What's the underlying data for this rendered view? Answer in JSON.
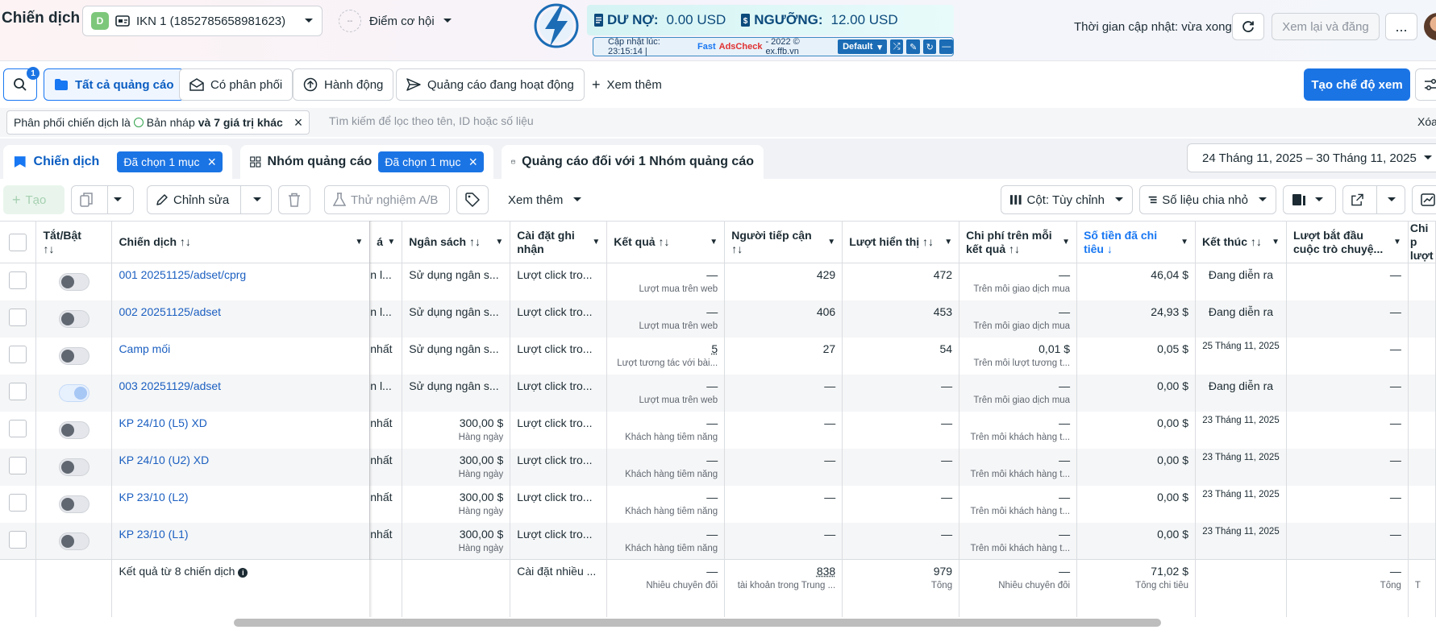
{
  "header": {
    "title": "Chiến dịch",
    "account_initial": "D",
    "account_name": "IKN 1 (1852785658981623)",
    "opportunity_label": "Điểm cơ hội",
    "update_time": "Thời gian cập nhật: vừa xong",
    "review_label": "Xem lại và đăng",
    "more_label": "..."
  },
  "adscheck": {
    "debt_label": "DƯ NỢ:",
    "debt_value": "0.00 USD",
    "threshold_label": "NGƯỠNG:",
    "threshold_value": "12.00 USD",
    "update_prefix": "Cập nhật lúc: 23:15:14 | ",
    "brand_fast": "Fast",
    "brand_ads": "AdsCheck",
    "brand_suffix": " - 2022 © ex.ffb.vn",
    "preset": "Default"
  },
  "toolbar": {
    "search_badge": "1",
    "tabs": [
      "Tất cả quảng cáo",
      "Có phân phối",
      "Hành động",
      "Quảng cáo đang hoạt động"
    ],
    "see_more": "Xem thêm",
    "create_view": "Tạo chế độ xem"
  },
  "filter": {
    "chip_prefix": "Phân phối chiến dịch là",
    "chip_value": "Bản nháp",
    "chip_more": "và 7 giá trị khác",
    "search_placeholder": "Tìm kiếm để lọc theo tên, ID hoặc số liệu",
    "clear": "Xóa"
  },
  "levels": {
    "campaign": "Chiến dịch",
    "campaign_selected": "Đã chọn 1 mục",
    "adset": "Nhóm quảng cáo",
    "adset_selected": "Đã chọn 1 mục",
    "ad": "Quảng cáo đối với 1 Nhóm quảng cáo",
    "date_range": "24 Tháng 11, 2025 – 30 Tháng 11, 2025"
  },
  "actions": {
    "create": "Tạo",
    "edit": "Chỉnh sửa",
    "ab_test": "Thử nghiệm A/B",
    "see_more": "Xem thêm",
    "columns": "Cột: Tùy chỉnh",
    "breakdown": "Số liệu chia nhỏ"
  },
  "table": {
    "headers": {
      "toggle": "Tắt/Bật",
      "campaign": "Chiến dịch",
      "cut": "á",
      "budget": "Ngân sách",
      "attribution": "Cài đặt ghi nhận",
      "results": "Kết quả",
      "reach": "Người tiếp cận",
      "impressions": "Lượt hiển thị",
      "cost_per_result": "Chi phí trên mỗi kết quả",
      "amount_spent": "Số tiền đã chi tiêu",
      "ends": "Kết thúc",
      "game_starts": "Lượt bắt đầu cuộc trò chuyệ...",
      "cost_more": "Chi p lượt"
    },
    "rows": [
      {
        "name": "001 20251125/adset/cprg",
        "on": false,
        "cut": "n l...",
        "budget": "Sử dụng ngân s...",
        "budget_sub": "",
        "attribution": "Lượt click tro...",
        "result": "—",
        "result_sub": "Lượt mua trên web",
        "reach": "429",
        "impressions": "472",
        "cpr": "—",
        "cpr_sub": "Trên mỗi giao dịch mua",
        "spent": "46,04 $",
        "ends": "Đang diễn ra",
        "starts": "—"
      },
      {
        "name": "002 20251125/adset",
        "on": false,
        "cut": "n l...",
        "budget": "Sử dụng ngân s...",
        "budget_sub": "",
        "attribution": "Lượt click tro...",
        "result": "—",
        "result_sub": "Lượt mua trên web",
        "reach": "406",
        "impressions": "453",
        "cpr": "—",
        "cpr_sub": "Trên mỗi giao dịch mua",
        "spent": "24,93 $",
        "ends": "Đang diễn ra",
        "starts": "—"
      },
      {
        "name": "Camp mối",
        "on": false,
        "cut": "nhất",
        "budget": "Sử dụng ngân s...",
        "budget_sub": "",
        "attribution": "Lượt click tro...",
        "result": "5",
        "result_sub": "Lượt tương tác với bài...",
        "reach": "27",
        "impressions": "54",
        "cpr": "0,01 $",
        "cpr_sub": "Trên mỗi lượt tương t...",
        "spent": "0,05 $",
        "ends": "25 Tháng 11, 2025",
        "starts": "—"
      },
      {
        "name": "003 20251129/adset",
        "on": true,
        "cut": "n l...",
        "budget": "Sử dụng ngân s...",
        "budget_sub": "",
        "attribution": "Lượt click tro...",
        "result": "—",
        "result_sub": "Lượt mua trên web",
        "reach": "—",
        "impressions": "—",
        "cpr": "—",
        "cpr_sub": "Trên mỗi giao dịch mua",
        "spent": "0,00 $",
        "ends": "Đang diễn ra",
        "starts": "—"
      },
      {
        "name": "KP 24/10 (L5) XD",
        "on": false,
        "cut": "nhất",
        "budget": "300,00 $",
        "budget_sub": "Hàng ngày",
        "attribution": "Lượt click tro...",
        "result": "—",
        "result_sub": "Khách hàng tiềm năng",
        "reach": "—",
        "impressions": "—",
        "cpr": "—",
        "cpr_sub": "Trên mỗi khách hàng t...",
        "spent": "0,00 $",
        "ends": "23 Tháng 11, 2025",
        "starts": "—"
      },
      {
        "name": "KP 24/10 (U2) XD",
        "on": false,
        "cut": "nhất",
        "budget": "300,00 $",
        "budget_sub": "Hàng ngày",
        "attribution": "Lượt click tro...",
        "result": "—",
        "result_sub": "Khách hàng tiềm năng",
        "reach": "—",
        "impressions": "—",
        "cpr": "—",
        "cpr_sub": "Trên mỗi khách hàng t...",
        "spent": "0,00 $",
        "ends": "23 Tháng 11, 2025",
        "starts": "—"
      },
      {
        "name": "KP 23/10 (L2)",
        "on": false,
        "cut": "nhất",
        "budget": "300,00 $",
        "budget_sub": "Hàng ngày",
        "attribution": "Lượt click tro...",
        "result": "—",
        "result_sub": "Khách hàng tiềm năng",
        "reach": "—",
        "impressions": "—",
        "cpr": "—",
        "cpr_sub": "Trên mỗi khách hàng t...",
        "spent": "0,00 $",
        "ends": "23 Tháng 11, 2025",
        "starts": "—"
      },
      {
        "name": "KP 23/10 (L1)",
        "on": false,
        "cut": "nhất",
        "budget": "300,00 $",
        "budget_sub": "Hàng ngày",
        "attribution": "Lượt click tro...",
        "result": "—",
        "result_sub": "Khách hàng tiềm năng",
        "reach": "—",
        "impressions": "—",
        "cpr": "—",
        "cpr_sub": "Trên mỗi khách hàng t...",
        "spent": "0,00 $",
        "ends": "23 Tháng 11, 2025",
        "starts": "—"
      }
    ],
    "total": {
      "label": "Kết quả từ 8 chiến dịch",
      "attribution": "Cài đặt nhiều ...",
      "result": "—",
      "result_sub": "Nhiều chuyển đổi",
      "reach": "838",
      "reach_sub": "tài khoản trong Trung ...",
      "impressions": "979",
      "impressions_sub": "Tổng",
      "cpr": "—",
      "cpr_sub": "Nhiều chuyển đổi",
      "spent": "71,02 $",
      "spent_sub": "Tổng chi tiêu",
      "starts": "—",
      "starts_sub": "Tổng",
      "extra_sub": "T"
    }
  }
}
